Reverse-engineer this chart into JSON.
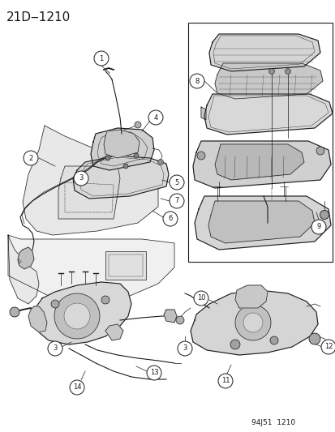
{
  "title": "21D‒1210",
  "footer": "94J51  1210",
  "bg_color": "#ffffff",
  "line_color": "#1a1a1a",
  "gray_fill": "#d8d8d8",
  "gray_dark": "#b0b0b0",
  "gray_light": "#ececec",
  "title_fontsize": 11,
  "footer_fontsize": 6.5,
  "fig_width": 4.14,
  "fig_height": 5.33,
  "dpi": 100
}
